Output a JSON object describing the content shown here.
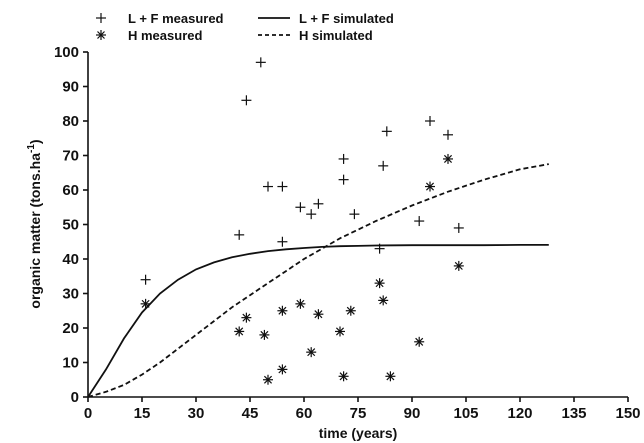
{
  "chart_data": {
    "type": "scatter",
    "title": "",
    "xlabel": "time (years)",
    "ylabel": "organic matter (tons.ha",
    "ylabel_superscript": "-1",
    "ylabel_suffix": ")",
    "xlim": [
      0,
      150
    ],
    "ylim": [
      0,
      100
    ],
    "xticks": [
      0,
      15,
      30,
      45,
      60,
      75,
      90,
      105,
      120,
      135,
      150
    ],
    "yticks": [
      0,
      10,
      20,
      30,
      40,
      50,
      60,
      70,
      80,
      90,
      100
    ],
    "grid": false,
    "legend_position": "top-left",
    "series": [
      {
        "name": "L + F measured",
        "kind": "points",
        "marker": "plus",
        "x": [
          16,
          42,
          44,
          48,
          50,
          54,
          54,
          59,
          62,
          64,
          71,
          71,
          74,
          81,
          82,
          83,
          92,
          95,
          100,
          103
        ],
        "y": [
          34,
          47,
          86,
          97,
          61,
          61,
          45,
          55,
          53,
          56,
          63,
          69,
          53,
          43,
          67,
          77,
          51,
          80,
          76,
          49
        ]
      },
      {
        "name": "H measured",
        "kind": "points",
        "marker": "asterisk",
        "x": [
          16,
          42,
          44,
          49,
          50,
          54,
          54,
          59,
          62,
          64,
          70,
          71,
          73,
          81,
          82,
          84,
          92,
          95,
          100,
          103
        ],
        "y": [
          27,
          19,
          23,
          18,
          5,
          25,
          8,
          27,
          13,
          24,
          19,
          6,
          25,
          33,
          28,
          6,
          16,
          61,
          69,
          38
        ]
      },
      {
        "name": "L + F simulated",
        "kind": "line",
        "dash": "solid",
        "x": [
          0,
          5,
          10,
          15,
          20,
          25,
          30,
          35,
          40,
          45,
          50,
          55,
          60,
          65,
          70,
          75,
          80,
          90,
          100,
          110,
          120,
          128
        ],
        "y": [
          0,
          8,
          17,
          24.5,
          30,
          34,
          37,
          39,
          40.5,
          41.5,
          42.3,
          42.8,
          43.2,
          43.5,
          43.7,
          43.8,
          43.9,
          44,
          44,
          44,
          44.1,
          44.1
        ]
      },
      {
        "name": "H simulated",
        "kind": "line",
        "dash": "dashed",
        "x": [
          0,
          5,
          10,
          15,
          20,
          25,
          30,
          35,
          40,
          45,
          50,
          55,
          60,
          65,
          70,
          75,
          80,
          90,
          100,
          110,
          120,
          128
        ],
        "y": [
          0,
          1.5,
          3.5,
          6.5,
          10,
          14,
          18,
          22,
          26,
          29.5,
          33,
          36.5,
          40,
          43,
          46,
          48.5,
          51,
          55.5,
          59.5,
          63,
          66,
          67.5
        ]
      }
    ]
  }
}
